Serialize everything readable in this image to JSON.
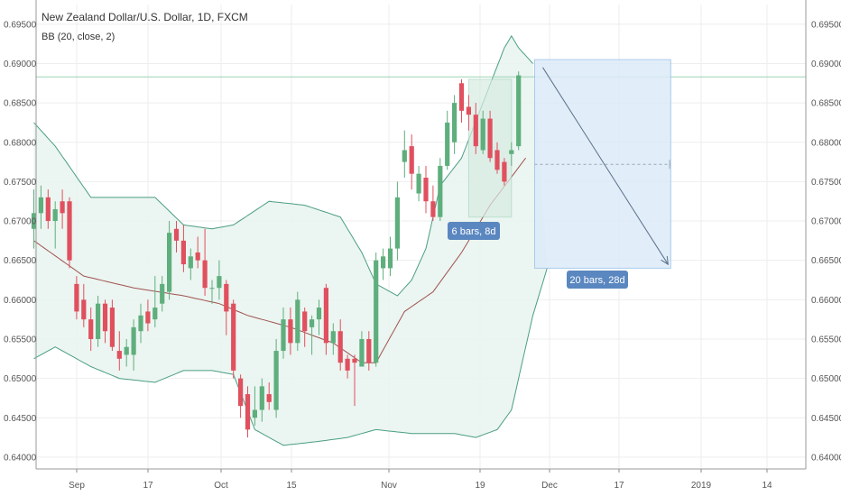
{
  "chart_data": {
    "type": "candlestick",
    "title": "New Zealand Dollar/U.S. Dollar, 1D, FXCM",
    "indicator_label": "BB (20, close, 2)",
    "ylim": [
      0.6385,
      0.6975
    ],
    "y_ticks": [
      "0.64000",
      "0.64500",
      "0.65000",
      "0.65500",
      "0.66000",
      "0.66500",
      "0.67000",
      "0.67500",
      "0.68000",
      "0.68500",
      "0.69000",
      "0.69500"
    ],
    "x_ticks": [
      "Sep",
      "17",
      "Oct",
      "15",
      "Nov",
      "19",
      "Dec",
      "17",
      "2019",
      "14"
    ],
    "grid": true,
    "colors": {
      "up": "#5fae7d",
      "down": "#e0505e",
      "band": "#4a9e83",
      "basis": "#a0524f",
      "band_fill": "#e8f3ef",
      "projection_fill": "#dcebf9",
      "projection_border": "#9cc4e8",
      "arrow": "#5a6f88",
      "badge": "#5b87c0",
      "horizontal_line": "#9ad4b5"
    },
    "candles": [
      {
        "date": "2018-08-28",
        "open": 0.669,
        "high": 0.674,
        "low": 0.6665,
        "close": 0.671
      },
      {
        "date": "2018-08-29",
        "open": 0.671,
        "high": 0.6745,
        "low": 0.669,
        "close": 0.673
      },
      {
        "date": "2018-08-30",
        "open": 0.673,
        "high": 0.674,
        "low": 0.669,
        "close": 0.67
      },
      {
        "date": "2018-08-31",
        "open": 0.67,
        "high": 0.6725,
        "low": 0.6665,
        "close": 0.6715
      },
      {
        "date": "2018-09-03",
        "open": 0.6725,
        "high": 0.674,
        "low": 0.669,
        "close": 0.671
      },
      {
        "date": "2018-09-04",
        "open": 0.6725,
        "high": 0.673,
        "low": 0.664,
        "close": 0.665
      },
      {
        "date": "2018-09-05",
        "open": 0.662,
        "high": 0.663,
        "low": 0.6575,
        "close": 0.6585
      },
      {
        "date": "2018-09-06",
        "open": 0.66,
        "high": 0.662,
        "low": 0.6565,
        "close": 0.6575
      },
      {
        "date": "2018-09-07",
        "open": 0.6575,
        "high": 0.659,
        "low": 0.6535,
        "close": 0.655
      },
      {
        "date": "2018-09-10",
        "open": 0.655,
        "high": 0.6605,
        "low": 0.654,
        "close": 0.6595
      },
      {
        "date": "2018-09-11",
        "open": 0.6595,
        "high": 0.66,
        "low": 0.6545,
        "close": 0.656
      },
      {
        "date": "2018-09-12",
        "open": 0.659,
        "high": 0.66,
        "low": 0.6535,
        "close": 0.654
      },
      {
        "date": "2018-09-13",
        "open": 0.6535,
        "high": 0.656,
        "low": 0.651,
        "close": 0.6525
      },
      {
        "date": "2018-09-14",
        "open": 0.653,
        "high": 0.655,
        "low": 0.6515,
        "close": 0.654
      },
      {
        "date": "2018-09-17",
        "open": 0.653,
        "high": 0.6575,
        "low": 0.651,
        "close": 0.6565
      },
      {
        "date": "2018-09-18",
        "open": 0.656,
        "high": 0.6595,
        "low": 0.6545,
        "close": 0.658
      },
      {
        "date": "2018-09-19",
        "open": 0.6585,
        "high": 0.66,
        "low": 0.656,
        "close": 0.657
      },
      {
        "date": "2018-09-20",
        "open": 0.6575,
        "high": 0.663,
        "low": 0.6565,
        "close": 0.659
      },
      {
        "date": "2018-09-21",
        "open": 0.6595,
        "high": 0.663,
        "low": 0.6585,
        "close": 0.662
      },
      {
        "date": "2018-09-24",
        "open": 0.661,
        "high": 0.67,
        "low": 0.66,
        "close": 0.6685
      },
      {
        "date": "2018-09-25",
        "open": 0.669,
        "high": 0.67,
        "low": 0.666,
        "close": 0.6675
      },
      {
        "date": "2018-09-26",
        "open": 0.6675,
        "high": 0.6695,
        "low": 0.6635,
        "close": 0.6645
      },
      {
        "date": "2018-09-27",
        "open": 0.664,
        "high": 0.6665,
        "low": 0.6625,
        "close": 0.6655
      },
      {
        "date": "2018-09-28",
        "open": 0.666,
        "high": 0.668,
        "low": 0.664,
        "close": 0.665
      },
      {
        "date": "2018-10-01",
        "open": 0.665,
        "high": 0.669,
        "low": 0.6605,
        "close": 0.6615
      },
      {
        "date": "2018-10-02",
        "open": 0.6615,
        "high": 0.6625,
        "low": 0.6595,
        "close": 0.6615
      },
      {
        "date": "2018-10-03",
        "open": 0.6615,
        "high": 0.665,
        "low": 0.66,
        "close": 0.663
      },
      {
        "date": "2018-10-04",
        "open": 0.662,
        "high": 0.6625,
        "low": 0.6555,
        "close": 0.6585
      },
      {
        "date": "2018-10-05",
        "open": 0.6595,
        "high": 0.66,
        "low": 0.65,
        "close": 0.651
      },
      {
        "date": "2018-10-08",
        "open": 0.65,
        "high": 0.6505,
        "low": 0.645,
        "close": 0.6465
      },
      {
        "date": "2018-10-09",
        "open": 0.648,
        "high": 0.649,
        "low": 0.6425,
        "close": 0.6435
      },
      {
        "date": "2018-10-10",
        "open": 0.645,
        "high": 0.649,
        "low": 0.644,
        "close": 0.646
      },
      {
        "date": "2018-10-11",
        "open": 0.646,
        "high": 0.65,
        "low": 0.6445,
        "close": 0.649
      },
      {
        "date": "2018-10-12",
        "open": 0.648,
        "high": 0.6495,
        "low": 0.646,
        "close": 0.647
      },
      {
        "date": "2018-10-15",
        "open": 0.646,
        "high": 0.655,
        "low": 0.645,
        "close": 0.6535
      },
      {
        "date": "2018-10-16",
        "open": 0.6535,
        "high": 0.659,
        "low": 0.6525,
        "close": 0.6575
      },
      {
        "date": "2018-10-17",
        "open": 0.6575,
        "high": 0.659,
        "low": 0.653,
        "close": 0.6545
      },
      {
        "date": "2018-10-18",
        "open": 0.6545,
        "high": 0.661,
        "low": 0.6535,
        "close": 0.66
      },
      {
        "date": "2018-10-19",
        "open": 0.6585,
        "high": 0.659,
        "low": 0.654,
        "close": 0.656
      },
      {
        "date": "2018-10-22",
        "open": 0.6565,
        "high": 0.658,
        "low": 0.653,
        "close": 0.6575
      },
      {
        "date": "2018-10-23",
        "open": 0.6575,
        "high": 0.66,
        "low": 0.6555,
        "close": 0.659
      },
      {
        "date": "2018-10-24",
        "open": 0.6615,
        "high": 0.662,
        "low": 0.653,
        "close": 0.6545
      },
      {
        "date": "2018-10-25",
        "open": 0.6545,
        "high": 0.657,
        "low": 0.653,
        "close": 0.656
      },
      {
        "date": "2018-10-26",
        "open": 0.656,
        "high": 0.6575,
        "low": 0.651,
        "close": 0.652
      },
      {
        "date": "2018-10-29",
        "open": 0.6525,
        "high": 0.653,
        "low": 0.65,
        "close": 0.651
      },
      {
        "date": "2018-10-30",
        "open": 0.6525,
        "high": 0.653,
        "low": 0.6465,
        "close": 0.652
      },
      {
        "date": "2018-10-31",
        "open": 0.6515,
        "high": 0.656,
        "low": 0.6515,
        "close": 0.655
      },
      {
        "date": "2018-11-01",
        "open": 0.655,
        "high": 0.656,
        "low": 0.651,
        "close": 0.652
      },
      {
        "date": "2018-11-02",
        "open": 0.652,
        "high": 0.666,
        "low": 0.6515,
        "close": 0.665
      },
      {
        "date": "2018-11-05",
        "open": 0.664,
        "high": 0.6665,
        "low": 0.6625,
        "close": 0.6655
      },
      {
        "date": "2018-11-06",
        "open": 0.664,
        "high": 0.668,
        "low": 0.663,
        "close": 0.6665
      },
      {
        "date": "2018-11-07",
        "open": 0.6665,
        "high": 0.675,
        "low": 0.665,
        "close": 0.673
      },
      {
        "date": "2018-11-08",
        "open": 0.6775,
        "high": 0.6815,
        "low": 0.6755,
        "close": 0.679
      },
      {
        "date": "2018-11-09",
        "open": 0.6795,
        "high": 0.681,
        "low": 0.674,
        "close": 0.676
      },
      {
        "date": "2018-11-12",
        "open": 0.6735,
        "high": 0.677,
        "low": 0.6725,
        "close": 0.676
      },
      {
        "date": "2018-11-13",
        "open": 0.6755,
        "high": 0.677,
        "low": 0.671,
        "close": 0.6725
      },
      {
        "date": "2018-11-14",
        "open": 0.6725,
        "high": 0.6745,
        "low": 0.67,
        "close": 0.6705
      },
      {
        "date": "2018-11-15",
        "open": 0.6705,
        "high": 0.678,
        "low": 0.67,
        "close": 0.677
      },
      {
        "date": "2018-11-16",
        "open": 0.677,
        "high": 0.684,
        "low": 0.6765,
        "close": 0.6825
      },
      {
        "date": "2018-11-19",
        "open": 0.68,
        "high": 0.686,
        "low": 0.6785,
        "close": 0.685
      },
      {
        "date": "2018-11-20",
        "open": 0.6875,
        "high": 0.688,
        "low": 0.6825,
        "close": 0.684
      },
      {
        "date": "2018-11-21",
        "open": 0.6845,
        "high": 0.686,
        "low": 0.6815,
        "close": 0.6835
      },
      {
        "date": "2018-11-22",
        "open": 0.6835,
        "high": 0.685,
        "low": 0.6785,
        "close": 0.6795
      },
      {
        "date": "2018-11-23",
        "open": 0.679,
        "high": 0.684,
        "low": 0.6785,
        "close": 0.683
      },
      {
        "date": "2018-11-26",
        "open": 0.683,
        "high": 0.684,
        "low": 0.6775,
        "close": 0.678
      },
      {
        "date": "2018-11-27",
        "open": 0.679,
        "high": 0.68,
        "low": 0.676,
        "close": 0.6765
      },
      {
        "date": "2018-11-28",
        "open": 0.6775,
        "high": 0.678,
        "low": 0.6745,
        "close": 0.675
      },
      {
        "date": "2018-11-29",
        "open": 0.6785,
        "high": 0.68,
        "low": 0.677,
        "close": 0.679
      },
      {
        "date": "2018-11-30",
        "open": 0.6795,
        "high": 0.689,
        "low": 0.679,
        "close": 0.6885
      }
    ],
    "bollinger": {
      "basis": [
        [
          0,
          0.6675
        ],
        [
          7,
          0.663
        ],
        [
          14,
          0.6615
        ],
        [
          21,
          0.6605
        ],
        [
          26,
          0.6595
        ],
        [
          30,
          0.658
        ],
        [
          36,
          0.6565
        ],
        [
          42,
          0.6545
        ],
        [
          46,
          0.652
        ],
        [
          48,
          0.652
        ],
        [
          52,
          0.6585
        ],
        [
          56,
          0.661
        ],
        [
          60,
          0.666
        ],
        [
          64,
          0.672
        ],
        [
          69,
          0.678
        ]
      ],
      "upper": [
        [
          0,
          0.6825
        ],
        [
          3,
          0.6795
        ],
        [
          8,
          0.673
        ],
        [
          12,
          0.673
        ],
        [
          17,
          0.673
        ],
        [
          21,
          0.6695
        ],
        [
          25,
          0.669
        ],
        [
          28,
          0.6695
        ],
        [
          33,
          0.6725
        ],
        [
          38,
          0.672
        ],
        [
          43,
          0.6705
        ],
        [
          46,
          0.666
        ],
        [
          48,
          0.662
        ],
        [
          51,
          0.6605
        ],
        [
          53,
          0.6625
        ],
        [
          55,
          0.6665
        ],
        [
          57,
          0.6745
        ],
        [
          60,
          0.678
        ],
        [
          63,
          0.685
        ],
        [
          66,
          0.692
        ],
        [
          67,
          0.6935
        ],
        [
          68,
          0.692
        ],
        [
          70,
          0.69
        ]
      ],
      "lower": [
        [
          0,
          0.6525
        ],
        [
          3,
          0.654
        ],
        [
          8,
          0.6515
        ],
        [
          12,
          0.65
        ],
        [
          17,
          0.6495
        ],
        [
          21,
          0.651
        ],
        [
          25,
          0.651
        ],
        [
          28,
          0.6505
        ],
        [
          31,
          0.6435
        ],
        [
          35,
          0.6415
        ],
        [
          40,
          0.642
        ],
        [
          44,
          0.6425
        ],
        [
          48,
          0.6435
        ],
        [
          53,
          0.643
        ],
        [
          59,
          0.643
        ],
        [
          62,
          0.6425
        ],
        [
          65,
          0.6435
        ],
        [
          67,
          0.646
        ],
        [
          70,
          0.658
        ],
        [
          72,
          0.664
        ]
      ]
    },
    "horizontal_line": 0.6883,
    "measure_small": {
      "label": "6 bars, 8d",
      "x_from": 61,
      "x_to": 67,
      "y_low": 0.6705,
      "y_high": 0.688
    },
    "projection": {
      "label": "20 bars, 28d",
      "x_from": 70,
      "x_to": 89,
      "y_low": 0.664,
      "y_high": 0.6905,
      "mid": 0.6772,
      "arrow_from": [
        0.6895
      ],
      "arrow_to": [
        0.6645
      ]
    }
  }
}
